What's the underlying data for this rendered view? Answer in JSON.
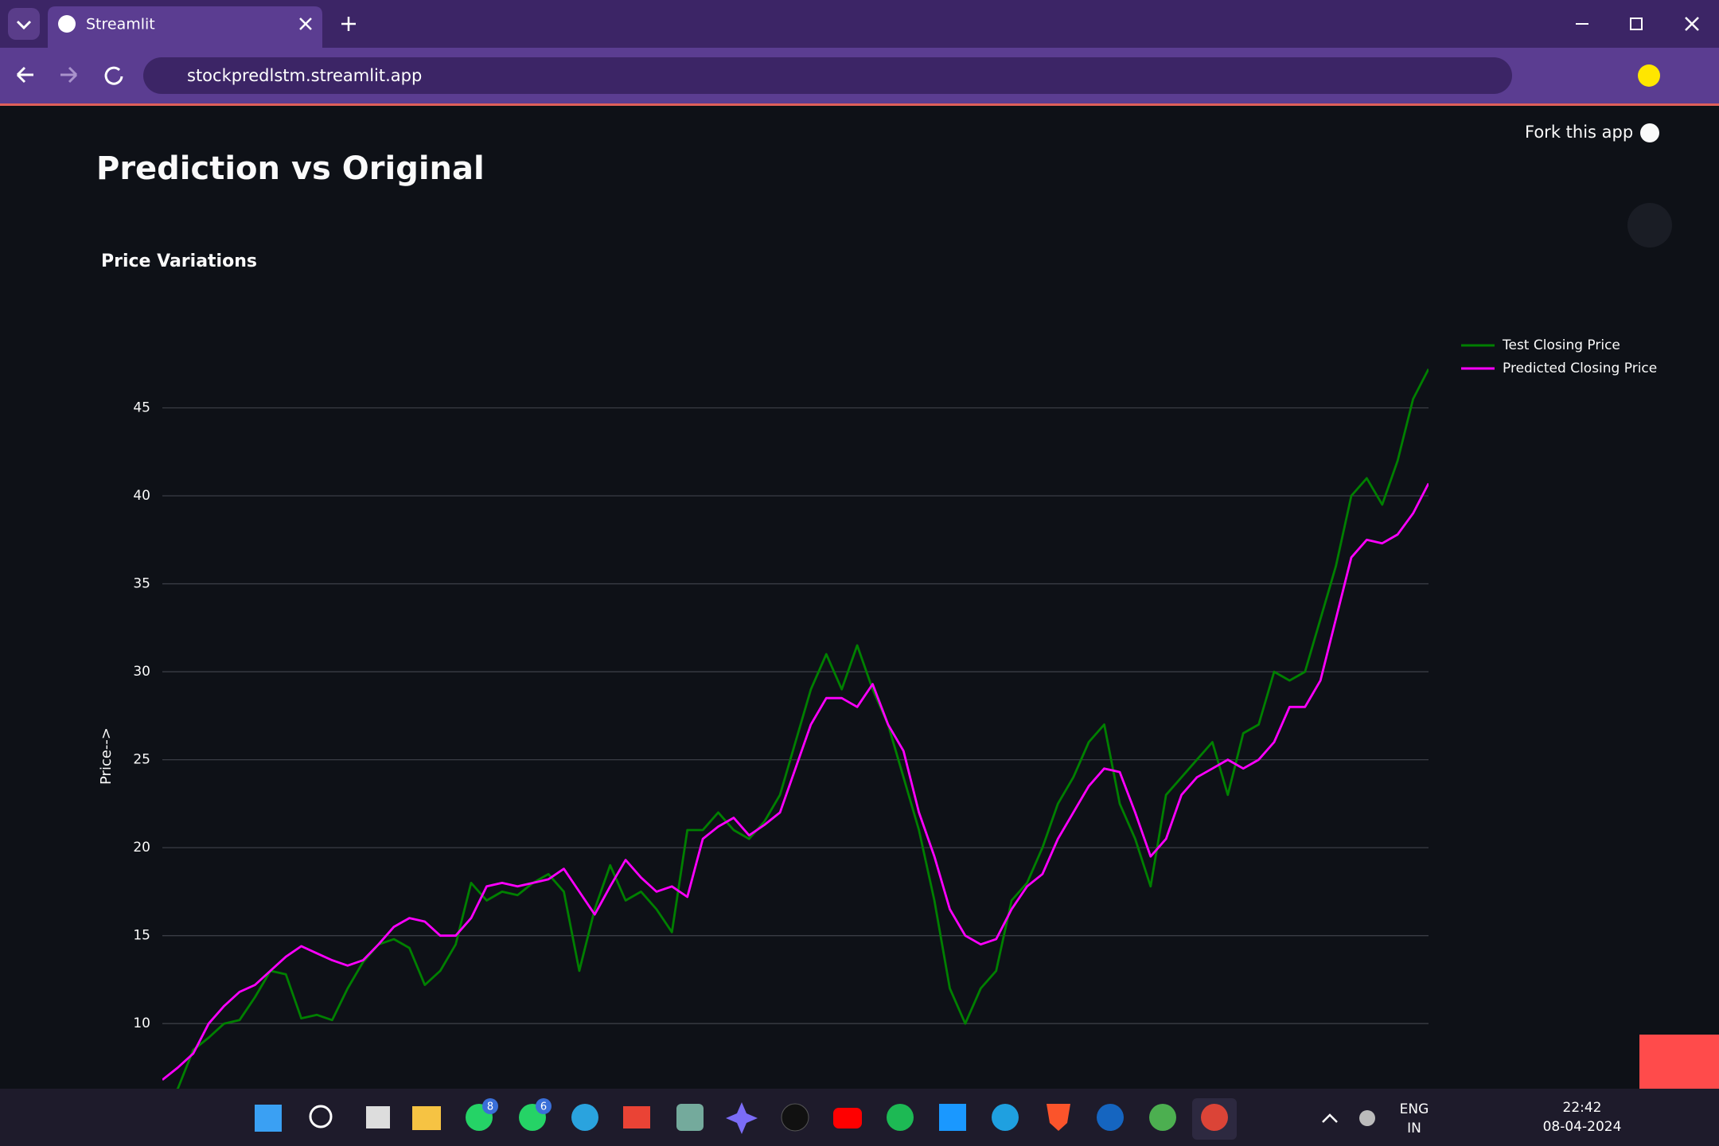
{
  "browser": {
    "tab_title": "Streamlit",
    "url": "stockpredlstm.streamlit.app"
  },
  "app": {
    "fork": "Fork this app",
    "header": "Prediction vs Original"
  },
  "chart_data": {
    "type": "line",
    "title": "Price Variations",
    "y_label": "Price-->",
    "ylim": [
      6.3,
      49.5
    ],
    "yticks": [
      10,
      15,
      20,
      25,
      30,
      35,
      40,
      45
    ],
    "grid": true,
    "legend": "top-right",
    "series": [
      {
        "name": "Test Closing Price",
        "color": "#008000",
        "values": [
          5.5,
          6.3,
          8.5,
          9.2,
          10,
          10.2,
          11.5,
          13,
          12.8,
          10.3,
          10.5,
          10.2,
          12,
          13.5,
          14.5,
          14.8,
          14.3,
          12.2,
          13,
          14.5,
          18,
          17,
          17.5,
          17.3,
          18,
          18.5,
          17.5,
          13,
          16.5,
          19,
          17,
          17.5,
          16.5,
          15.2,
          21,
          21,
          22,
          21,
          20.5,
          21.5,
          23,
          26,
          29,
          31,
          29,
          31.5,
          29,
          27,
          24,
          21,
          17,
          12,
          10,
          12,
          13,
          17,
          18,
          20,
          22.5,
          24,
          26,
          27,
          22.5,
          20.5,
          17.8,
          23,
          24,
          25,
          26,
          23,
          26.5,
          27,
          30,
          29.5,
          30,
          33,
          36,
          40,
          41,
          39.5,
          42,
          45.5,
          47.2
        ]
      },
      {
        "name": "Predicted Closing Price",
        "color": "#ff00ff",
        "values": [
          6.8,
          7.5,
          8.3,
          10,
          11,
          11.8,
          12.2,
          13,
          13.8,
          14.4,
          14,
          13.6,
          13.3,
          13.6,
          14.5,
          15.5,
          16,
          15.8,
          15,
          15,
          16,
          17.8,
          18,
          17.8,
          18,
          18.2,
          18.8,
          17.5,
          16.2,
          17.8,
          19.3,
          18.3,
          17.5,
          17.8,
          17.2,
          20.5,
          21.2,
          21.7,
          20.7,
          21.3,
          22,
          24.5,
          27,
          28.5,
          28.5,
          28,
          29.3,
          27,
          25.5,
          22,
          19.5,
          16.5,
          15,
          14.5,
          14.8,
          16.5,
          17.8,
          18.5,
          20.5,
          22,
          23.5,
          24.5,
          24.3,
          22,
          19.5,
          20.5,
          23,
          24,
          24.5,
          25,
          24.5,
          25,
          26,
          28,
          28,
          29.5,
          33,
          36.5,
          37.5,
          37.3,
          37.8,
          39,
          40.7
        ]
      }
    ]
  },
  "taskbar": {
    "badge1": "8",
    "badge2": "6",
    "lang": "ENG",
    "region": "IN",
    "time": "22:42",
    "date": "08-04-2024"
  }
}
